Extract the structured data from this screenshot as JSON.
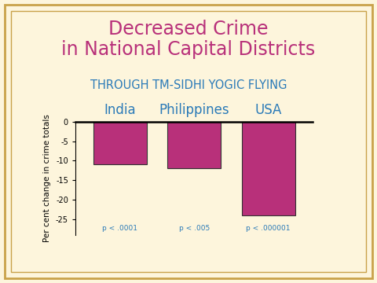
{
  "chart_data": {
    "type": "bar",
    "title": "Decreased Crime\nin National Capital Districts",
    "subtitle": "THROUGH TM-SIDHI YOGIC FLYING",
    "categories": [
      "India",
      "Philippines",
      "USA"
    ],
    "values": [
      -11,
      -12,
      -24
    ],
    "annotations": [
      "p < .0001",
      "p < .005",
      "p < .000001"
    ],
    "y_label": "Per cent change in crime totals",
    "color": "#b8307a",
    "ylim": [
      -29,
      0
    ],
    "yticks": [
      0,
      -5,
      -10,
      -15,
      -20,
      -25
    ],
    "grid": false
  }
}
